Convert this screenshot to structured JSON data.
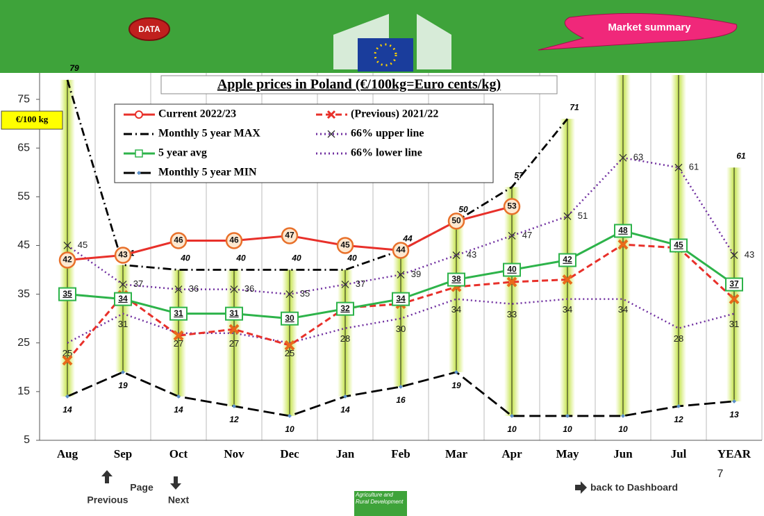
{
  "header": {
    "data_button": "DATA",
    "summary_button": "Market summary"
  },
  "chart_data": {
    "type": "line",
    "title": "Apple prices in Poland (€/100kg=Euro cents/kg)",
    "unit_label": "€/100 kg",
    "categories": [
      "Aug",
      "Sep",
      "Oct",
      "Nov",
      "Dec",
      "Jan",
      "Feb",
      "Mar",
      "Apr",
      "May",
      "Jun",
      "Jul",
      "YEAR"
    ],
    "ylim": [
      5,
      80
    ],
    "yticks": [
      5,
      15,
      25,
      35,
      45,
      55,
      65,
      75
    ],
    "grid": true,
    "series": [
      {
        "name": "Current 2022/23",
        "color": "#e8302a",
        "line_style": "solid",
        "marker": "circle",
        "labels": "inside",
        "values": [
          42,
          43,
          46,
          46,
          47,
          45,
          44,
          50,
          53,
          null,
          null,
          null,
          null
        ]
      },
      {
        "name": "(Previous) 2021/22",
        "color": "#e8302a",
        "line_style": "dashed",
        "marker": "x",
        "labels": "none",
        "values": [
          21.4,
          34.8,
          26.5,
          27.8,
          24.5,
          32.2,
          33,
          36.5,
          37.5,
          38,
          45.2,
          44.5,
          34
        ]
      },
      {
        "name": "Monthly 5 year MAX",
        "color": "#000000",
        "line_style": "dashdot",
        "marker": "none",
        "labels": "above",
        "values": [
          79,
          41,
          40,
          40,
          40,
          40,
          44,
          50,
          57,
          71,
          null,
          null,
          61
        ]
      },
      {
        "name": "66% upper line",
        "color": "#7030a0",
        "line_style": "dotted",
        "marker": "x",
        "labels": "right",
        "values": [
          45,
          37,
          36,
          36,
          35,
          37,
          39,
          43,
          47,
          51,
          63,
          61,
          43
        ]
      },
      {
        "name": "5 year avg",
        "color": "#2db34a",
        "line_style": "solid",
        "marker": "square",
        "labels": "inside",
        "values": [
          35,
          34,
          31,
          31,
          30,
          32,
          34,
          38,
          40,
          42,
          48,
          45,
          37
        ]
      },
      {
        "name": "66% lower line",
        "color": "#7030a0",
        "line_style": "dotted",
        "marker": "none",
        "labels": "center",
        "values": [
          25,
          31,
          27,
          27,
          25,
          28,
          30,
          34,
          33,
          34,
          34,
          28,
          31
        ]
      },
      {
        "name": "Monthly 5 year MIN",
        "color": "#000000",
        "line_style": "longdash",
        "marker": "diamond",
        "labels": "below",
        "values": [
          14,
          19,
          14,
          12,
          10,
          14,
          16,
          19,
          10,
          10,
          10,
          12,
          13
        ]
      }
    ]
  },
  "footer": {
    "page": "Page",
    "previous": "Previous",
    "next": "Next",
    "dashboard": "back to Dashboard",
    "page_number": "7",
    "logo": "Agriculture and Rural Development"
  }
}
